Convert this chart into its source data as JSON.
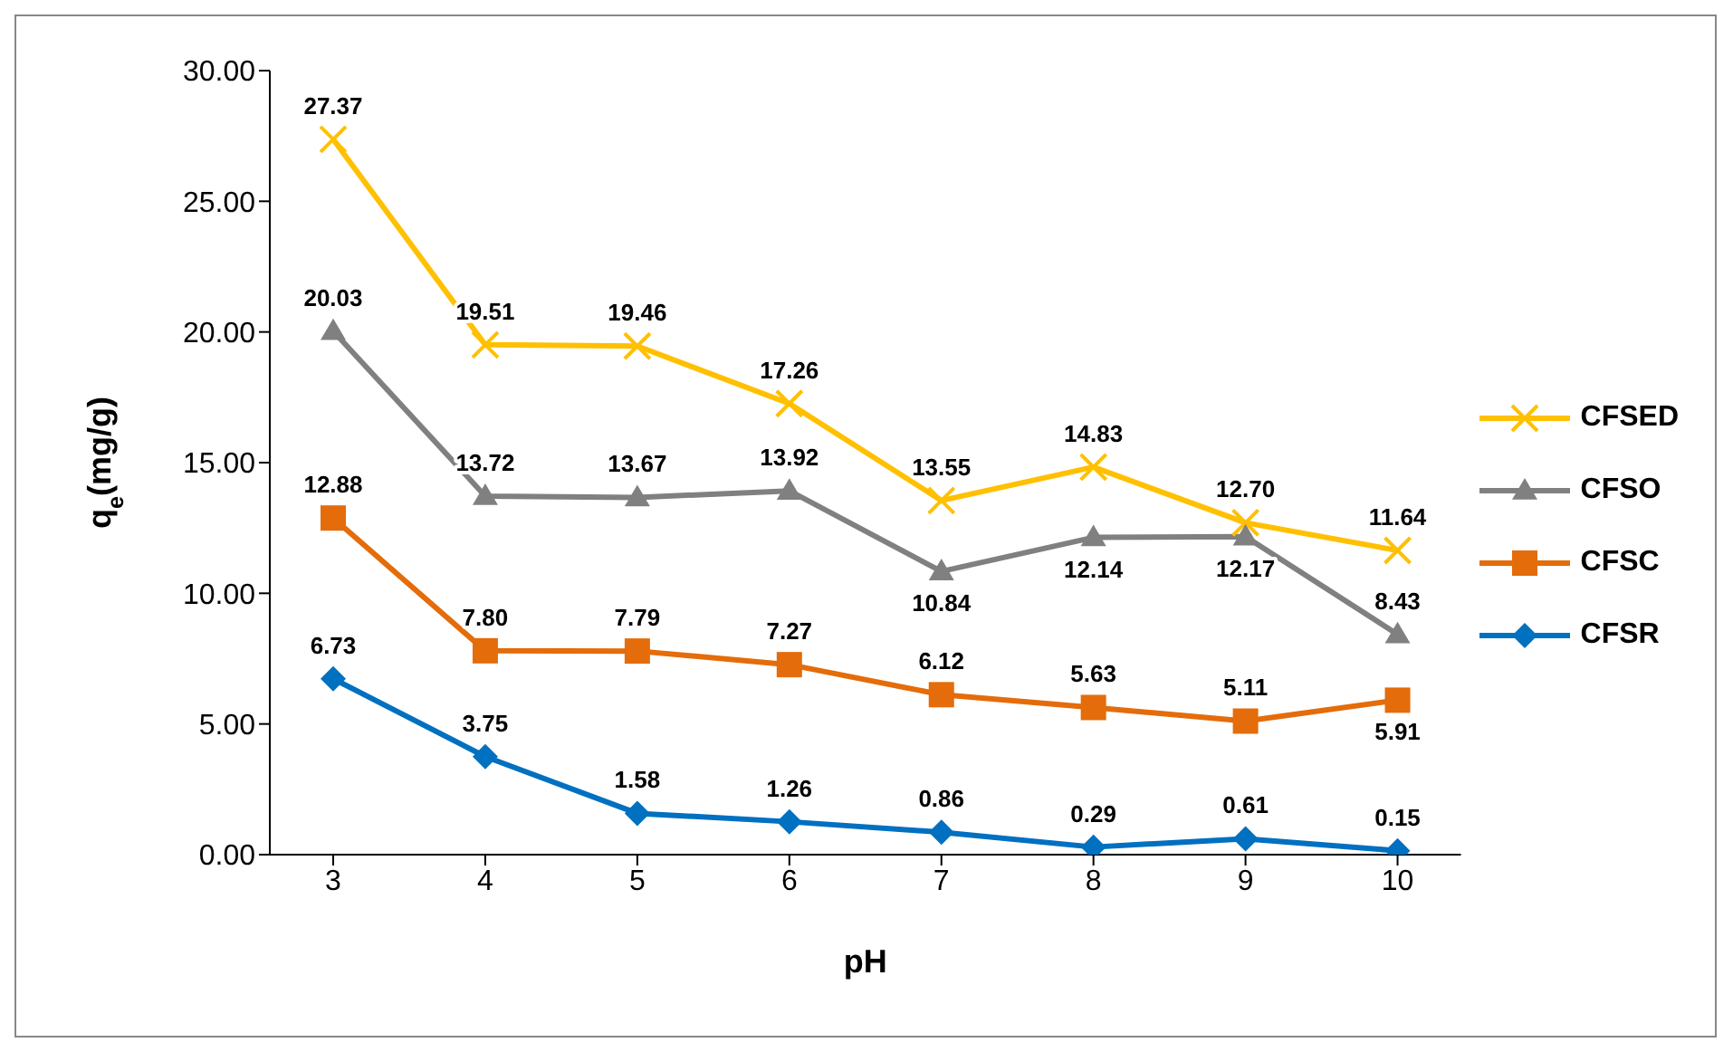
{
  "chart_data": {
    "type": "line",
    "xlabel": "pH",
    "ylabel": "q$_{e}$(mg/g)",
    "categories": [
      "3",
      "4",
      "5",
      "6",
      "7",
      "8",
      "9",
      "10"
    ],
    "ylim": [
      0,
      30
    ],
    "yticks": [
      {
        "value": 0,
        "label": "0.00"
      },
      {
        "value": 5,
        "label": "5.00"
      },
      {
        "value": 10,
        "label": "10.00"
      },
      {
        "value": 15,
        "label": "15.00"
      },
      {
        "value": 20,
        "label": "20.00"
      },
      {
        "value": 25,
        "label": "25.00"
      },
      {
        "value": 30,
        "label": "30.00"
      }
    ],
    "grid": false,
    "legend": "right",
    "series": [
      {
        "name": "CFSED",
        "color": "#ffc000",
        "marker": "cross",
        "values": [
          27.37,
          19.51,
          19.46,
          17.26,
          13.55,
          14.83,
          12.7,
          11.64
        ],
        "value_labels": [
          "27.37",
          "19.51",
          "19.46",
          "17.26",
          "13.55",
          "14.83",
          "12.70",
          "11.64"
        ]
      },
      {
        "name": "CFSO",
        "color": "#808080",
        "marker": "triangle",
        "values": [
          20.03,
          13.72,
          13.67,
          13.92,
          10.84,
          12.14,
          12.17,
          8.43
        ],
        "value_labels": [
          "20.03",
          "13.72",
          "13.67",
          "13.92",
          "10.84",
          "12.14",
          "12.17",
          "8.43"
        ]
      },
      {
        "name": "CFSC",
        "color": "#e46c0a",
        "marker": "square",
        "values": [
          12.88,
          7.8,
          7.79,
          7.27,
          6.12,
          5.63,
          5.11,
          5.91
        ],
        "value_labels": [
          "12.88",
          "7.80",
          "7.79",
          "7.27",
          "6.12",
          "5.63",
          "5.11",
          "5.91"
        ]
      },
      {
        "name": "CFSR",
        "color": "#0070c0",
        "marker": "diamond",
        "values": [
          6.73,
          3.75,
          1.58,
          1.26,
          0.86,
          0.29,
          0.61,
          0.15
        ],
        "value_labels": [
          "6.73",
          "3.75",
          "1.58",
          "1.26",
          "0.86",
          "0.29",
          "0.61",
          "0.15"
        ]
      }
    ]
  }
}
